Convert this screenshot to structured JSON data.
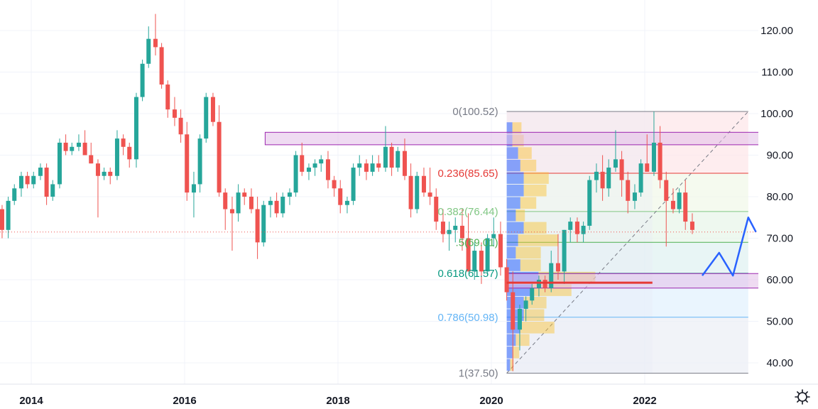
{
  "chart_data": {
    "type": "candlestick",
    "ylim": [
      35,
      125
    ],
    "y_ticks": [
      "40.00",
      "50.00",
      "60.00",
      "70.00",
      "80.00",
      "90.00",
      "100.00",
      "110.00",
      "120.00"
    ],
    "y_tick_values": [
      40,
      50,
      60,
      70,
      80,
      90,
      100,
      110,
      120
    ],
    "x_ticks": [
      "2014",
      "2016",
      "2018",
      "2020",
      "2022"
    ],
    "x_tick_values": [
      2014,
      2016,
      2018,
      2020,
      2022
    ],
    "xlim": [
      2013.6,
      2023.9
    ],
    "colors": {
      "up": "#26a69a",
      "down": "#ef5350",
      "zone_fill": "#e1bee7",
      "zone_stroke": "#9c27b0",
      "arrow": "#2962ff",
      "fib_line": "#787b86"
    },
    "fib_levels": [
      {
        "label": "0(100.52)",
        "value": 100.52,
        "color": "#787b86"
      },
      {
        "label": "0.236(85.65)",
        "value": 85.65,
        "color": "#e53935"
      },
      {
        "label": "0.382(76.44)",
        "value": 76.44,
        "color": "#81c784"
      },
      {
        "label": ".5(69.01)",
        "value": 69.01,
        "color": "#4caf50"
      },
      {
        "label": "0.618(61.57)",
        "value": 61.57,
        "color": "#089981"
      },
      {
        "label": "0.786(50.98)",
        "value": 50.98,
        "color": "#64b5f6"
      },
      {
        "label": "1(37.50)",
        "value": 37.5,
        "color": "#787b86"
      }
    ],
    "fib_range": {
      "x0": 2020.2,
      "x1": 2023.35
    },
    "zones": [
      {
        "x0": 2017.05,
        "x1": 2023.7,
        "y0": 92.5,
        "y1": 95.5
      },
      {
        "x0": 2020.2,
        "x1": 2023.7,
        "y0": 58.0,
        "y1": 61.5
      }
    ],
    "support_line": {
      "x0": 2020.2,
      "x1": 2022.1,
      "y": 59.3
    },
    "current_price": 71.5,
    "projection": [
      [
        2022.75,
        61.0
      ],
      [
        2022.97,
        66.5
      ],
      [
        2023.15,
        61.0
      ],
      [
        2023.35,
        75.0
      ],
      [
        2023.45,
        71.5
      ]
    ],
    "volume_profile": [
      {
        "price": 96.5,
        "buy": 0.05,
        "sell": 0.08
      },
      {
        "price": 93.5,
        "buy": 0.05,
        "sell": 0.1
      },
      {
        "price": 90.5,
        "buy": 0.1,
        "sell": 0.12
      },
      {
        "price": 87.5,
        "buy": 0.12,
        "sell": 0.14
      },
      {
        "price": 84.5,
        "buy": 0.15,
        "sell": 0.22
      },
      {
        "price": 81.5,
        "buy": 0.15,
        "sell": 0.2
      },
      {
        "price": 78.5,
        "buy": 0.12,
        "sell": 0.14
      },
      {
        "price": 75.5,
        "buy": 0.08,
        "sell": 0.08
      },
      {
        "price": 72.5,
        "buy": 0.15,
        "sell": 0.2
      },
      {
        "price": 69.5,
        "buy": 0.1,
        "sell": 0.35
      },
      {
        "price": 66.5,
        "buy": 0.08,
        "sell": 0.22
      },
      {
        "price": 63.5,
        "buy": 0.12,
        "sell": 0.18
      },
      {
        "price": 60.5,
        "buy": 0.28,
        "sell": 0.5
      },
      {
        "price": 57.5,
        "buy": 0.22,
        "sell": 0.35
      },
      {
        "price": 54.5,
        "buy": 0.15,
        "sell": 0.2
      },
      {
        "price": 51.5,
        "buy": 0.15,
        "sell": 0.18
      },
      {
        "price": 48.5,
        "buy": 0.12,
        "sell": 0.3
      },
      {
        "price": 45.5,
        "buy": 0.08,
        "sell": 0.12
      },
      {
        "price": 42.5,
        "buy": 0.05,
        "sell": 0.06
      },
      {
        "price": 39.5,
        "buy": 0.03,
        "sell": 0.03
      }
    ],
    "candles": [
      [
        2013.62,
        77,
        78,
        70,
        72
      ],
      [
        2013.7,
        72,
        80,
        70,
        79
      ],
      [
        2013.78,
        79,
        83,
        78,
        82
      ],
      [
        2013.87,
        82,
        86,
        80,
        85
      ],
      [
        2013.95,
        85,
        86,
        82,
        83
      ],
      [
        2014.03,
        83,
        86,
        82,
        85
      ],
      [
        2014.12,
        85,
        88,
        84,
        87
      ],
      [
        2014.2,
        87,
        88,
        78,
        80
      ],
      [
        2014.28,
        80,
        84,
        79,
        83
      ],
      [
        2014.37,
        83,
        94,
        82,
        93
      ],
      [
        2014.45,
        93,
        95,
        90,
        91
      ],
      [
        2014.53,
        91,
        93,
        90,
        92
      ],
      [
        2014.62,
        92,
        95,
        91,
        93
      ],
      [
        2014.7,
        93,
        96,
        90,
        90
      ],
      [
        2014.78,
        90,
        93,
        88,
        88
      ],
      [
        2014.87,
        88,
        89,
        75,
        85
      ],
      [
        2014.95,
        85,
        87,
        84,
        86
      ],
      [
        2015.03,
        86,
        87,
        83,
        85
      ],
      [
        2015.12,
        85,
        96,
        84,
        94
      ],
      [
        2015.2,
        94,
        95,
        90,
        92
      ],
      [
        2015.28,
        92,
        93,
        87,
        89
      ],
      [
        2015.37,
        89,
        105,
        87,
        104
      ],
      [
        2015.45,
        104,
        113,
        103,
        112
      ],
      [
        2015.53,
        112,
        121,
        111,
        118
      ],
      [
        2015.62,
        118,
        124,
        114,
        116
      ],
      [
        2015.7,
        116,
        117,
        106,
        107
      ],
      [
        2015.78,
        107,
        108,
        99,
        101
      ],
      [
        2015.87,
        101,
        104,
        97,
        99
      ],
      [
        2015.95,
        99,
        101,
        93,
        95
      ],
      [
        2016.03,
        95,
        98,
        79,
        81
      ],
      [
        2016.12,
        81,
        86,
        75,
        83
      ],
      [
        2016.2,
        83,
        95,
        81,
        94
      ],
      [
        2016.28,
        94,
        105,
        93,
        104
      ],
      [
        2016.37,
        104,
        105,
        97,
        98
      ],
      [
        2016.45,
        98,
        102,
        80,
        81
      ],
      [
        2016.53,
        81,
        82,
        72,
        77
      ],
      [
        2016.62,
        77,
        80,
        67,
        76
      ],
      [
        2016.7,
        76,
        83,
        74,
        81
      ],
      [
        2016.78,
        81,
        82,
        78,
        80
      ],
      [
        2016.87,
        80,
        82,
        76,
        77
      ],
      [
        2016.95,
        77,
        80,
        65,
        69
      ],
      [
        2017.03,
        69,
        79,
        68,
        78
      ],
      [
        2017.12,
        78,
        80,
        75,
        79
      ],
      [
        2017.2,
        79,
        81,
        75,
        76
      ],
      [
        2017.28,
        76,
        81,
        75,
        80
      ],
      [
        2017.37,
        80,
        82,
        78,
        81
      ],
      [
        2017.45,
        81,
        91,
        80,
        90
      ],
      [
        2017.53,
        90,
        93,
        85,
        86
      ],
      [
        2017.62,
        86,
        88,
        84,
        87
      ],
      [
        2017.7,
        87,
        89,
        85,
        88
      ],
      [
        2017.78,
        88,
        90,
        86,
        89
      ],
      [
        2017.87,
        89,
        91,
        82,
        84
      ],
      [
        2017.95,
        84,
        85,
        80,
        82
      ],
      [
        2018.03,
        82,
        84,
        76,
        78
      ],
      [
        2018.12,
        78,
        80,
        76,
        79
      ],
      [
        2018.2,
        79,
        88,
        78,
        87
      ],
      [
        2018.28,
        87,
        90,
        85,
        88
      ],
      [
        2018.37,
        88,
        89,
        84,
        86
      ],
      [
        2018.45,
        86,
        90,
        85,
        88
      ],
      [
        2018.53,
        88,
        90,
        86,
        87
      ],
      [
        2018.62,
        87,
        97,
        86,
        92
      ],
      [
        2018.7,
        92,
        93,
        85,
        87
      ],
      [
        2018.78,
        87,
        92,
        86,
        91
      ],
      [
        2018.87,
        91,
        94,
        84,
        85
      ],
      [
        2018.95,
        85,
        88,
        75,
        77
      ],
      [
        2019.03,
        77,
        86,
        76,
        85
      ],
      [
        2019.12,
        85,
        87,
        80,
        81
      ],
      [
        2019.2,
        81,
        87,
        78,
        80
      ],
      [
        2019.28,
        80,
        82,
        72,
        74
      ],
      [
        2019.37,
        74,
        77,
        69,
        71
      ],
      [
        2019.45,
        71,
        74,
        67,
        72
      ],
      [
        2019.53,
        72,
        75,
        69,
        73
      ],
      [
        2019.62,
        73,
        77,
        67,
        70
      ],
      [
        2019.7,
        70,
        76,
        62,
        62
      ],
      [
        2019.78,
        62,
        69,
        60,
        67
      ],
      [
        2019.87,
        67,
        69,
        59,
        62
      ],
      [
        2019.95,
        62,
        71,
        61,
        70
      ],
      [
        2020.03,
        70,
        75,
        68,
        71
      ],
      [
        2020.12,
        71,
        74,
        61,
        63
      ],
      [
        2020.2,
        63,
        65,
        55,
        57
      ],
      [
        2020.28,
        57,
        62,
        38,
        48
      ],
      [
        2020.37,
        48,
        54,
        43,
        53
      ],
      [
        2020.45,
        53,
        56,
        50,
        55
      ],
      [
        2020.53,
        55,
        59,
        54,
        58
      ],
      [
        2020.62,
        58,
        61,
        56,
        60
      ],
      [
        2020.7,
        60,
        61,
        57,
        58
      ],
      [
        2020.78,
        58,
        67,
        57,
        64
      ],
      [
        2020.87,
        64,
        71,
        60,
        62
      ],
      [
        2020.95,
        62,
        72,
        59,
        72
      ],
      [
        2021.03,
        72,
        75,
        69,
        74
      ],
      [
        2021.12,
        74,
        75,
        69,
        71
      ],
      [
        2021.2,
        71,
        74,
        69,
        73
      ],
      [
        2021.28,
        73,
        85,
        72,
        84
      ],
      [
        2021.37,
        84,
        88,
        81,
        86
      ],
      [
        2021.45,
        86,
        90,
        79,
        82
      ],
      [
        2021.53,
        82,
        89,
        80,
        87
      ],
      [
        2021.62,
        87,
        96,
        86,
        89
      ],
      [
        2021.7,
        89,
        91,
        80,
        84
      ],
      [
        2021.78,
        84,
        86,
        76,
        79
      ],
      [
        2021.87,
        79,
        83,
        77,
        81
      ],
      [
        2021.95,
        81,
        89,
        80,
        88
      ],
      [
        2022.03,
        88,
        95,
        86,
        86
      ],
      [
        2022.12,
        86,
        100.5,
        85,
        93
      ],
      [
        2022.2,
        93,
        97,
        82,
        84
      ],
      [
        2022.28,
        84,
        86,
        68,
        79
      ],
      [
        2022.37,
        79,
        82,
        76,
        77
      ],
      [
        2022.45,
        77,
        82,
        76,
        81
      ],
      [
        2022.53,
        81,
        84,
        72,
        74
      ],
      [
        2022.62,
        74,
        76,
        71,
        72
      ]
    ]
  }
}
